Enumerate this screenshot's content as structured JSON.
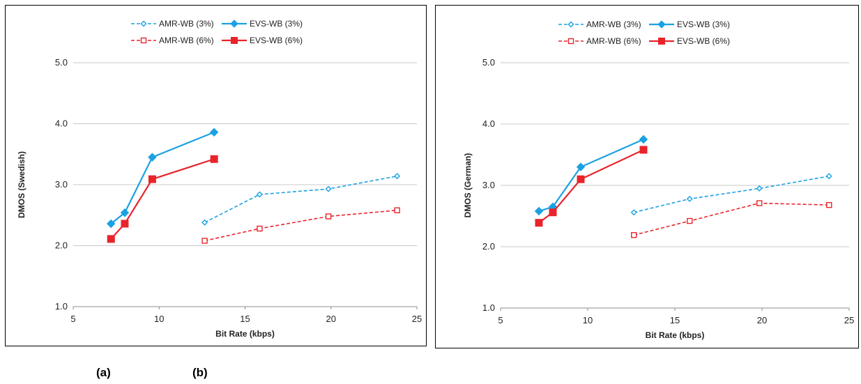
{
  "captions": {
    "a": "(a)",
    "b": "(b)"
  },
  "legend_order": [
    "AMR-WB (3%)",
    "AMR-WB (6%)",
    "EVS-WB (3%)",
    "EVS-WB (6%)"
  ],
  "series_styles": {
    "AMR-WB (3%)": {
      "color": "#1ba1e2",
      "dash": true,
      "marker": "diamond",
      "filled": false
    },
    "AMR-WB (6%)": {
      "color": "#e8242b",
      "dash": true,
      "marker": "square",
      "filled": false
    },
    "EVS-WB (3%)": {
      "color": "#1ba1e2",
      "dash": false,
      "marker": "diamond",
      "filled": true
    },
    "EVS-WB (6%)": {
      "color": "#e8242b",
      "dash": false,
      "marker": "square",
      "filled": true
    }
  },
  "chart_data": [
    {
      "type": "line",
      "xlabel": "Bit Rate (kbps)",
      "ylabel": "DMOS (Swedish)",
      "xlim": [
        5,
        25
      ],
      "ylim": [
        1.0,
        5.0
      ],
      "xticks": [
        "5",
        "10",
        "15",
        "20",
        "25"
      ],
      "yticks": [
        "1.0",
        "2.0",
        "3.0",
        "4.0",
        "5.0"
      ],
      "grid": "horizontal",
      "legend": "top",
      "series": [
        {
          "name": "AMR-WB (3%)",
          "x": [
            12.65,
            15.85,
            19.85,
            23.85
          ],
          "y": [
            2.38,
            2.84,
            2.93,
            3.14
          ]
        },
        {
          "name": "AMR-WB (6%)",
          "x": [
            12.65,
            15.85,
            19.85,
            23.85
          ],
          "y": [
            2.08,
            2.28,
            2.48,
            2.58
          ]
        },
        {
          "name": "EVS-WB (3%)",
          "x": [
            7.2,
            8.0,
            9.6,
            13.2
          ],
          "y": [
            2.36,
            2.54,
            3.45,
            3.86
          ]
        },
        {
          "name": "EVS-WB (6%)",
          "x": [
            7.2,
            8.0,
            9.6,
            13.2
          ],
          "y": [
            2.11,
            2.36,
            3.09,
            3.42
          ]
        }
      ]
    },
    {
      "type": "line",
      "xlabel": "Bit Rate (kbps)",
      "ylabel": "DMOS (German)",
      "xlim": [
        5,
        25
      ],
      "ylim": [
        1.0,
        5.0
      ],
      "xticks": [
        "5",
        "10",
        "15",
        "20",
        "25"
      ],
      "yticks": [
        "1.0",
        "2.0",
        "3.0",
        "4.0",
        "5.0"
      ],
      "grid": "horizontal",
      "legend": "top",
      "series": [
        {
          "name": "AMR-WB (3%)",
          "x": [
            12.65,
            15.85,
            19.85,
            23.85
          ],
          "y": [
            2.56,
            2.78,
            2.95,
            3.15
          ]
        },
        {
          "name": "AMR-WB (6%)",
          "x": [
            12.65,
            15.85,
            19.85,
            23.85
          ],
          "y": [
            2.19,
            2.42,
            2.71,
            2.68
          ]
        },
        {
          "name": "EVS-WB (3%)",
          "x": [
            7.2,
            8.0,
            9.6,
            13.2
          ],
          "y": [
            2.58,
            2.65,
            3.3,
            3.75
          ]
        },
        {
          "name": "EVS-WB (6%)",
          "x": [
            7.2,
            8.0,
            9.6,
            13.2
          ],
          "y": [
            2.39,
            2.56,
            3.1,
            3.58
          ]
        }
      ]
    }
  ]
}
